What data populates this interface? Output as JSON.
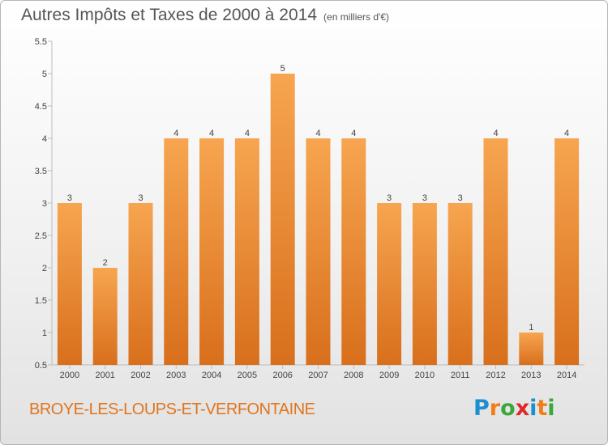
{
  "header": {
    "title": "Autres Impôts et Taxes de 2000 à 2014",
    "unit": "(en milliers d'€)"
  },
  "footer": {
    "commune": "BROYE-LES-LOUPS-ET-VERFONTAINE",
    "logo": "Proxiti"
  },
  "colors": {
    "bar_top": "#f7a550",
    "bar_bottom": "#d86f1c",
    "axis": "#bdbdbd",
    "text": "#444444",
    "commune": "#e0751e",
    "logo_letters": [
      "#1c8fd0",
      "#f07d1a",
      "#3ba83b",
      "#e02a2a",
      "#1c8fd0",
      "#f07d1a",
      "#3ba83b"
    ]
  },
  "chart_data": {
    "type": "bar",
    "title": "Autres Impôts et Taxes de 2000 à 2014",
    "subtitle": "(en milliers d'€)",
    "categories": [
      "2000",
      "2001",
      "2002",
      "2003",
      "2004",
      "2005",
      "2006",
      "2007",
      "2008",
      "2009",
      "2010",
      "2011",
      "2012",
      "2013",
      "2014"
    ],
    "values": [
      3,
      2,
      3,
      4,
      4,
      4,
      5,
      4,
      4,
      3,
      3,
      3,
      4,
      1,
      4
    ],
    "data_labels": [
      "3",
      "2",
      "3",
      "4",
      "4",
      "4",
      "5",
      "4",
      "4",
      "3",
      "3",
      "3",
      "4",
      "1",
      "4"
    ],
    "ylim": [
      0.5,
      5.5
    ],
    "yticks": [
      "0.5",
      "1",
      "1.5",
      "2",
      "2.5",
      "3",
      "3.5",
      "4",
      "4.5",
      "5",
      "5.5"
    ],
    "ytick_values": [
      0.5,
      1,
      1.5,
      2,
      2.5,
      3,
      3.5,
      4,
      4.5,
      5,
      5.5
    ],
    "xlabel": "",
    "ylabel": "",
    "grid": false,
    "legend": "none"
  }
}
